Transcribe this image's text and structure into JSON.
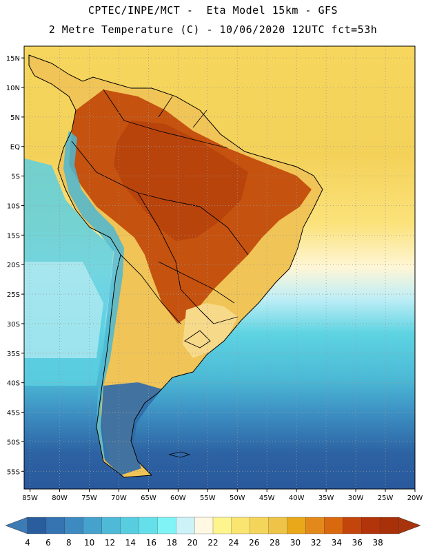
{
  "header": {
    "line1": "CPTEC/INPE/MCT -  Eta Model 15km - GFS",
    "line2": "2 Metre Temperature (C) - 10/06/2020 12UTC fct=53h"
  },
  "map": {
    "region": "South America",
    "lon_range": [
      -86,
      -20
    ],
    "lat_range": [
      -58,
      17
    ],
    "lat_ticks": [
      {
        "value": 15,
        "label": "15N"
      },
      {
        "value": 10,
        "label": "10N"
      },
      {
        "value": 5,
        "label": "5N"
      },
      {
        "value": 0,
        "label": "EQ"
      },
      {
        "value": -5,
        "label": "5S"
      },
      {
        "value": -10,
        "label": "10S"
      },
      {
        "value": -15,
        "label": "15S"
      },
      {
        "value": -20,
        "label": "20S"
      },
      {
        "value": -25,
        "label": "25S"
      },
      {
        "value": -30,
        "label": "30S"
      },
      {
        "value": -35,
        "label": "35S"
      },
      {
        "value": -40,
        "label": "40S"
      },
      {
        "value": -45,
        "label": "45S"
      },
      {
        "value": -50,
        "label": "50S"
      },
      {
        "value": -55,
        "label": "55S"
      }
    ],
    "lon_ticks": [
      {
        "value": -85,
        "label": "85W"
      },
      {
        "value": -80,
        "label": "80W"
      },
      {
        "value": -75,
        "label": "75W"
      },
      {
        "value": -70,
        "label": "70W"
      },
      {
        "value": -65,
        "label": "65W"
      },
      {
        "value": -60,
        "label": "60W"
      },
      {
        "value": -55,
        "label": "55W"
      },
      {
        "value": -50,
        "label": "50W"
      },
      {
        "value": -45,
        "label": "45W"
      },
      {
        "value": -40,
        "label": "40W"
      },
      {
        "value": -35,
        "label": "35W"
      },
      {
        "value": -30,
        "label": "30W"
      },
      {
        "value": -25,
        "label": "25W"
      },
      {
        "value": -20,
        "label": "20W"
      }
    ]
  },
  "colorbar": {
    "labels": [
      "4",
      "6",
      "8",
      "10",
      "12",
      "14",
      "16",
      "18",
      "20",
      "22",
      "24",
      "26",
      "28",
      "30",
      "32",
      "34",
      "36",
      "38"
    ],
    "colors": [
      "#2a5d9e",
      "#3573b1",
      "#3d8ac0",
      "#45a2cc",
      "#4ebad7",
      "#58cde0",
      "#65e0ea",
      "#7ff4f6",
      "#ccf3f8",
      "#fff8e3",
      "#fef58f",
      "#f9e570",
      "#f4d55b",
      "#eec448",
      "#e9a81a",
      "#e3891c",
      "#d9690f",
      "#c4450c",
      "#b2340b",
      "#a8310a"
    ],
    "low_color": "#3d7bb5",
    "high_color": "#a8340d"
  }
}
